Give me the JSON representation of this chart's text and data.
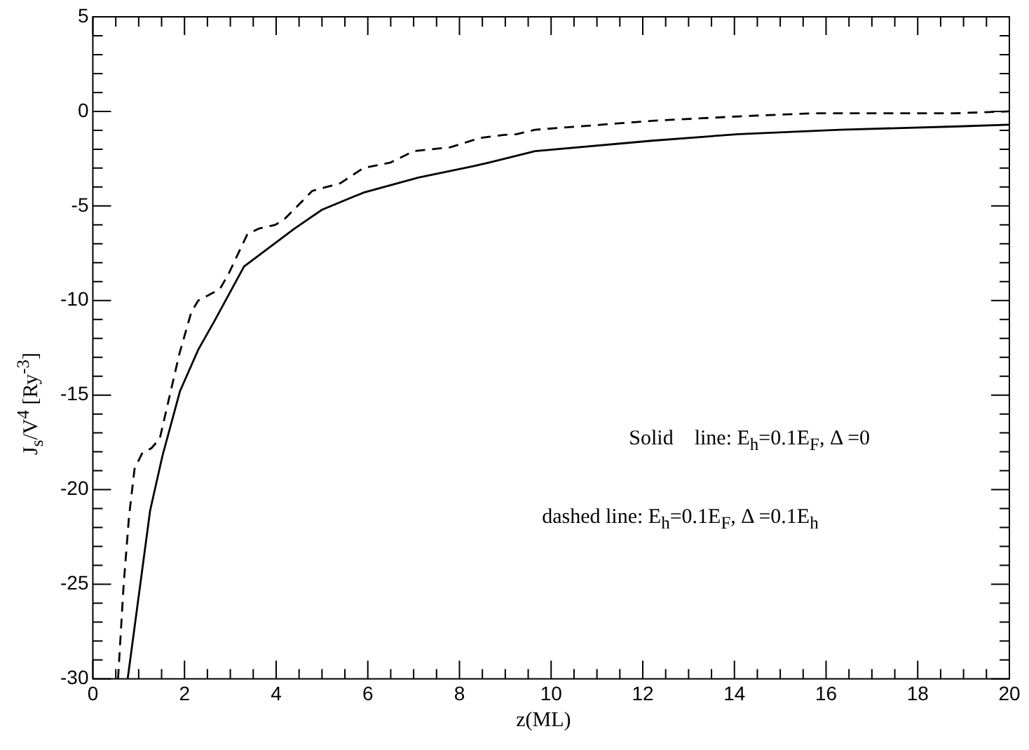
{
  "chart_data": {
    "type": "line",
    "xlabel": "z(ML)",
    "ylabel": "J$_{s}$/V$^{4}$ [Ry$^{-3}$]",
    "xlim": [
      0,
      20
    ],
    "xticks": [
      0,
      {
        "value": 0.5,
        "label": null
      },
      {
        "value": 1,
        "label": null
      },
      {
        "value": 1.5,
        "label": null
      },
      2,
      {
        "value": 2.5,
        "label": null
      },
      {
        "value": 3,
        "label": null
      },
      {
        "value": 3.5,
        "label": null
      },
      4,
      {
        "value": 4.5,
        "label": null
      },
      {
        "value": 5,
        "label": null
      },
      {
        "value": 5.5,
        "label": null
      },
      6,
      {
        "value": 6.5,
        "label": null
      },
      {
        "value": 7,
        "label": null
      },
      {
        "value": 7.5,
        "label": null
      },
      8,
      {
        "value": 8.5,
        "label": null
      },
      {
        "value": 9,
        "label": null
      },
      {
        "value": 9.5,
        "label": null
      },
      10,
      {
        "value": 10.5,
        "label": null
      },
      {
        "value": 11,
        "label": null
      },
      {
        "value": 11.5,
        "label": null
      },
      12,
      {
        "value": 12.5,
        "label": null
      },
      {
        "value": 13,
        "label": null
      },
      {
        "value": 13.5,
        "label": null
      },
      14,
      {
        "value": 14.5,
        "label": null
      },
      {
        "value": 15,
        "label": null
      },
      {
        "value": 15.5,
        "label": null
      },
      16,
      {
        "value": 16.5,
        "label": null
      },
      {
        "value": 17,
        "label": null
      },
      {
        "value": 17.5,
        "label": null
      },
      18,
      {
        "value": 18.5,
        "label": null
      },
      {
        "value": 19,
        "label": null
      },
      {
        "value": 19.5,
        "label": null
      },
      20
    ],
    "ylim": [
      -30,
      5
    ],
    "yticks": [
      -30,
      {
        "value": -29,
        "label": null
      },
      {
        "value": -28,
        "label": null
      },
      {
        "value": -27,
        "label": null
      },
      {
        "value": -26,
        "label": null
      },
      -25,
      {
        "value": -24,
        "label": null
      },
      {
        "value": -23,
        "label": null
      },
      {
        "value": -22,
        "label": null
      },
      {
        "value": -21,
        "label": null
      },
      -20,
      {
        "value": -19,
        "label": null
      },
      {
        "value": -18,
        "label": null
      },
      {
        "value": -17,
        "label": null
      },
      {
        "value": -16,
        "label": null
      },
      -15,
      {
        "value": -14,
        "label": null
      },
      {
        "value": -13,
        "label": null
      },
      {
        "value": -12,
        "label": null
      },
      {
        "value": -11,
        "label": null
      },
      -10,
      {
        "value": -9,
        "label": null
      },
      {
        "value": -8,
        "label": null
      },
      {
        "value": -7,
        "label": null
      },
      {
        "value": -6,
        "label": null
      },
      -5,
      {
        "value": -4,
        "label": null
      },
      {
        "value": -3,
        "label": null
      },
      {
        "value": -2,
        "label": null
      },
      {
        "value": -1,
        "label": null
      },
      0,
      {
        "value": 1,
        "label": null
      },
      {
        "value": 2,
        "label": null
      },
      {
        "value": 3,
        "label": null
      },
      {
        "value": 4,
        "label": null
      },
      5
    ],
    "grid": false,
    "legend": false,
    "marker": "none",
    "series": [
      {
        "color": "#000000",
        "line_style": "solid",
        "x": [
          0.76,
          1.25,
          1.52,
          1.9,
          2.3,
          2.65,
          3.3,
          4.4,
          5.0,
          5.9,
          7.1,
          8.3,
          8.65,
          9.65,
          12.2,
          14.1,
          16.3,
          18.8,
          20
        ],
        "values": [
          -30,
          -21.1,
          -18.2,
          -14.8,
          -12.6,
          -11.1,
          -8.2,
          -6.2,
          -5.2,
          -4.3,
          -3.5,
          -2.9,
          -2.7,
          -2.1,
          -1.55,
          -1.2,
          -0.97,
          -0.8,
          -0.7
        ]
      },
      {
        "color": "#000000",
        "line_style": "dashed",
        "x": [
          0.55,
          0.67,
          0.79,
          0.91,
          1.07,
          1.28,
          1.46,
          1.89,
          2.15,
          2.3,
          2.77,
          2.96,
          3.37,
          3.62,
          3.98,
          4.18,
          4.79,
          5.4,
          5.9,
          6.5,
          7.0,
          7.8,
          8.45,
          8.95,
          9.25,
          9.65,
          12.2,
          14.2,
          15.7,
          18.8,
          20
        ],
        "values": [
          -30,
          -25.1,
          -21.4,
          -18.9,
          -18.1,
          -17.8,
          -17.3,
          -12.8,
          -10.6,
          -10.0,
          -9.4,
          -8.6,
          -6.5,
          -6.2,
          -6.0,
          -5.7,
          -4.2,
          -3.8,
          -3.0,
          -2.7,
          -2.1,
          -1.9,
          -1.4,
          -1.25,
          -1.2,
          -0.97,
          -0.5,
          -0.25,
          -0.1,
          -0.1,
          0
        ]
      }
    ],
    "annotations": [
      "Solid    line: E$_{h}$=0.1E$_{F}$, Δ =0",
      "dashed line: E$_{h}$=0.1E$_{F}$, Δ =0.1E$_{h}$"
    ]
  }
}
